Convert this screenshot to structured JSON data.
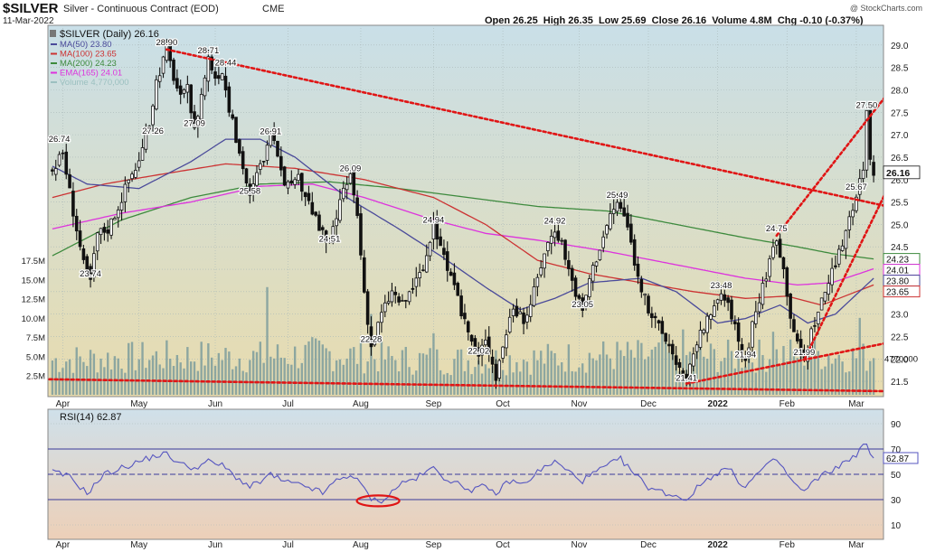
{
  "header": {
    "title": "$SILVER",
    "subtitle": "Silver - Continuous Contract (EOD)",
    "exchange": "CME",
    "date": "11-Mar-2022",
    "ohlc": "Open 26.25  High 26.35  Low 25.69  Close 26.16  Volume 4.8M  Chg -0.10 (-0.37%)",
    "credit": "@ StockCharts.com"
  },
  "colors": {
    "price_bg_top": "#c9dfe8",
    "price_bg_bottom": "#e8dcae",
    "rsi_bg_top": "#cfe0ea",
    "rsi_bg_bottom": "#edd0b8",
    "ma50": "#4a4a9a",
    "ma100": "#cc3333",
    "ma200": "#3d8a3d",
    "ema165": "#dd33dd",
    "volume": "#7c9c9c",
    "candle": "#111111",
    "trendline": "#e01515",
    "rsi_line": "#5656c0"
  },
  "chart_data": [
    {
      "type": "candlestick",
      "title": "$SILVER (Daily) 26.16",
      "legend": [
        {
          "label": "MA(50) 23.80",
          "color": "#4a4a9a"
        },
        {
          "label": "MA(100) 23.65",
          "color": "#cc3333"
        },
        {
          "label": "MA(200) 24.23",
          "color": "#3d8a3d"
        },
        {
          "label": "EMA(165) 24.01",
          "color": "#dd33dd"
        },
        {
          "label": "Volume 4,770,000",
          "color": "#9cc0c0"
        }
      ],
      "x_tick_labels": [
        "Apr",
        "May",
        "Jun",
        "Jul",
        "Aug",
        "Sep",
        "Oct",
        "Nov",
        "Dec",
        "2022",
        "Feb",
        "Mar"
      ],
      "x_tick_index": [
        3,
        25,
        47,
        68,
        89,
        110,
        130,
        152,
        172,
        192,
        212,
        232
      ],
      "y_ticks": [
        21.5,
        22.0,
        22.5,
        23.0,
        23.5,
        24.0,
        24.5,
        25.0,
        25.5,
        26.0,
        26.5,
        27.0,
        27.5,
        28.0,
        28.5,
        29.0
      ],
      "y_tick_labels": [
        "21.5",
        "22.0",
        "22.5",
        "23.0",
        "23.5",
        "24.0",
        "24.5",
        "25.0",
        "25.5",
        "26.0",
        "26.5",
        "27.0",
        "27.5",
        "28.0",
        "28.5",
        "29.0"
      ],
      "ylim": [
        21.2,
        29.4
      ],
      "x_count": 238,
      "last_price": "26.16",
      "right_value_labels": [
        {
          "text": "24.23",
          "value": 24.23,
          "color": "#3d8a3d"
        },
        {
          "text": "24.01",
          "value": 24.01,
          "color": "#dd33dd"
        },
        {
          "text": "23.80",
          "value": 23.8,
          "color": "#4a4a9a"
        },
        {
          "text": "23.65",
          "value": 23.65,
          "color": "#cc3333"
        }
      ],
      "price_path": [
        [
          0,
          26.2
        ],
        [
          3,
          26.6
        ],
        [
          6,
          25.3
        ],
        [
          9,
          24.1
        ],
        [
          11,
          23.74
        ],
        [
          13,
          24.8
        ],
        [
          16,
          24.9
        ],
        [
          19,
          25.4
        ],
        [
          22,
          26.0
        ],
        [
          25,
          26.4
        ],
        [
          28,
          27.26
        ],
        [
          30,
          28.2
        ],
        [
          33,
          28.9
        ],
        [
          35,
          28.3
        ],
        [
          37,
          27.8
        ],
        [
          39,
          28.0
        ],
        [
          41,
          27.09
        ],
        [
          43,
          27.9
        ],
        [
          45,
          28.71
        ],
        [
          47,
          28.3
        ],
        [
          49,
          28.44
        ],
        [
          51,
          27.6
        ],
        [
          53,
          26.9
        ],
        [
          55,
          26.3
        ],
        [
          57,
          25.58
        ],
        [
          59,
          26.1
        ],
        [
          61,
          26.5
        ],
        [
          63,
          26.91
        ],
        [
          65,
          26.6
        ],
        [
          67,
          26.0
        ],
        [
          69,
          25.8
        ],
        [
          71,
          26.0
        ],
        [
          74,
          25.5
        ],
        [
          77,
          24.9
        ],
        [
          80,
          24.51
        ],
        [
          83,
          25.5
        ],
        [
          86,
          26.09
        ],
        [
          88,
          25.2
        ],
        [
          90,
          23.5
        ],
        [
          92,
          22.28
        ],
        [
          95,
          23.0
        ],
        [
          98,
          23.5
        ],
        [
          101,
          23.2
        ],
        [
          104,
          23.6
        ],
        [
          107,
          24.0
        ],
        [
          110,
          24.94
        ],
        [
          112,
          24.6
        ],
        [
          114,
          24.0
        ],
        [
          117,
          23.3
        ],
        [
          120,
          22.6
        ],
        [
          123,
          22.02
        ],
        [
          125,
          22.5
        ],
        [
          128,
          21.6
        ],
        [
          130,
          22.3
        ],
        [
          133,
          23.2
        ],
        [
          136,
          22.8
        ],
        [
          139,
          23.5
        ],
        [
          142,
          24.4
        ],
        [
          145,
          24.92
        ],
        [
          147,
          24.6
        ],
        [
          149,
          24.0
        ],
        [
          151,
          23.5
        ],
        [
          153,
          23.05
        ],
        [
          155,
          23.8
        ],
        [
          158,
          24.5
        ],
        [
          161,
          25.2
        ],
        [
          163,
          25.49
        ],
        [
          165,
          25.2
        ],
        [
          167,
          24.6
        ],
        [
          169,
          23.8
        ],
        [
          172,
          23.1
        ],
        [
          175,
          22.7
        ],
        [
          178,
          22.3
        ],
        [
          181,
          21.8
        ],
        [
          183,
          21.41
        ],
        [
          185,
          22.2
        ],
        [
          188,
          22.7
        ],
        [
          191,
          23.1
        ],
        [
          193,
          23.48
        ],
        [
          196,
          23.0
        ],
        [
          198,
          22.4
        ],
        [
          200,
          21.94
        ],
        [
          202,
          22.8
        ],
        [
          205,
          23.6
        ],
        [
          207,
          24.2
        ],
        [
          209,
          24.75
        ],
        [
          211,
          24.0
        ],
        [
          213,
          23.0
        ],
        [
          215,
          22.3
        ],
        [
          217,
          21.99
        ],
        [
          219,
          22.6
        ],
        [
          222,
          23.3
        ],
        [
          224,
          23.7
        ],
        [
          226,
          24.1
        ],
        [
          228,
          24.6
        ],
        [
          230,
          25.2
        ],
        [
          232,
          25.67
        ],
        [
          234,
          26.3
        ],
        [
          235,
          27.5
        ],
        [
          236,
          26.5
        ],
        [
          237,
          26.16
        ]
      ],
      "ma50": [
        [
          0,
          26.3
        ],
        [
          10,
          25.9
        ],
        [
          25,
          25.8
        ],
        [
          40,
          26.4
        ],
        [
          50,
          26.9
        ],
        [
          60,
          26.9
        ],
        [
          70,
          26.5
        ],
        [
          85,
          25.6
        ],
        [
          100,
          24.9
        ],
        [
          112,
          24.3
        ],
        [
          125,
          23.6
        ],
        [
          135,
          23.1
        ],
        [
          145,
          23.35
        ],
        [
          155,
          23.7
        ],
        [
          170,
          23.8
        ],
        [
          180,
          23.5
        ],
        [
          192,
          22.8
        ],
        [
          200,
          22.9
        ],
        [
          210,
          23.2
        ],
        [
          218,
          22.8
        ],
        [
          226,
          23.0
        ],
        [
          237,
          23.8
        ]
      ],
      "ma100": [
        [
          0,
          25.6
        ],
        [
          15,
          25.9
        ],
        [
          30,
          26.1
        ],
        [
          50,
          26.35
        ],
        [
          70,
          26.25
        ],
        [
          90,
          26.0
        ],
        [
          110,
          25.6
        ],
        [
          125,
          25.0
        ],
        [
          140,
          24.2
        ],
        [
          155,
          23.9
        ],
        [
          170,
          23.7
        ],
        [
          185,
          23.5
        ],
        [
          200,
          23.35
        ],
        [
          212,
          23.4
        ],
        [
          222,
          23.2
        ],
        [
          237,
          23.65
        ]
      ],
      "ma200": [
        [
          0,
          24.3
        ],
        [
          20,
          25.1
        ],
        [
          40,
          25.6
        ],
        [
          60,
          25.9
        ],
        [
          80,
          25.95
        ],
        [
          100,
          25.8
        ],
        [
          120,
          25.6
        ],
        [
          140,
          25.4
        ],
        [
          160,
          25.3
        ],
        [
          180,
          25.0
        ],
        [
          200,
          24.7
        ],
        [
          215,
          24.5
        ],
        [
          225,
          24.35
        ],
        [
          237,
          24.23
        ]
      ],
      "ema165": [
        [
          0,
          24.9
        ],
        [
          20,
          25.25
        ],
        [
          40,
          25.5
        ],
        [
          60,
          25.85
        ],
        [
          75,
          25.9
        ],
        [
          90,
          25.6
        ],
        [
          110,
          25.1
        ],
        [
          125,
          24.8
        ],
        [
          140,
          24.65
        ],
        [
          160,
          24.4
        ],
        [
          180,
          24.1
        ],
        [
          200,
          23.8
        ],
        [
          215,
          23.65
        ],
        [
          225,
          23.7
        ],
        [
          237,
          24.01
        ]
      ],
      "price_labels": [
        {
          "text": "26.74",
          "i": 2,
          "v": 26.74
        },
        {
          "text": "23.74",
          "i": 11,
          "v": 23.74
        },
        {
          "text": "28.90",
          "i": 33,
          "v": 28.9
        },
        {
          "text": "27.26",
          "i": 29,
          "v": 27.26
        },
        {
          "text": "28.71",
          "i": 45,
          "v": 28.71
        },
        {
          "text": "27.09",
          "i": 41,
          "v": 27.09
        },
        {
          "text": "28.44",
          "i": 50,
          "v": 28.44
        },
        {
          "text": "26.91",
          "i": 63,
          "v": 26.91
        },
        {
          "text": "25.58",
          "i": 57,
          "v": 25.58
        },
        {
          "text": "26.09",
          "i": 86,
          "v": 26.09
        },
        {
          "text": "24.51",
          "i": 80,
          "v": 24.51
        },
        {
          "text": "22.28",
          "i": 92,
          "v": 22.28
        },
        {
          "text": "24.94",
          "i": 110,
          "v": 24.94
        },
        {
          "text": "22.02",
          "i": 123,
          "v": 22.02
        },
        {
          "text": "24.92",
          "i": 145,
          "v": 24.92
        },
        {
          "text": "23.05",
          "i": 153,
          "v": 23.05
        },
        {
          "text": "25.49",
          "i": 163,
          "v": 25.49
        },
        {
          "text": "21.41",
          "i": 183,
          "v": 21.41
        },
        {
          "text": "23.48",
          "i": 193,
          "v": 23.48
        },
        {
          "text": "21.94",
          "i": 200,
          "v": 21.94
        },
        {
          "text": "24.75",
          "i": 209,
          "v": 24.75
        },
        {
          "text": "21.99",
          "i": 217,
          "v": 21.99
        },
        {
          "text": "25.67",
          "i": 232,
          "v": 25.67
        },
        {
          "text": "27.50",
          "i": 235,
          "v": 27.5
        }
      ],
      "volume_axis_labels": [
        "17.5M",
        "15.0M",
        "12.5M",
        "10.0M",
        "7.5M",
        "5.0M",
        "2.5M"
      ],
      "volume_axis_values": [
        17.5,
        15.0,
        12.5,
        10.0,
        7.5,
        5.0,
        2.5
      ],
      "volume_max": 17.5,
      "volume_last_label": "4770000",
      "volume_profile": [
        [
          0,
          4.5
        ],
        [
          20,
          4.8
        ],
        [
          40,
          5.0
        ],
        [
          60,
          4.9
        ],
        [
          80,
          5.4
        ],
        [
          100,
          4.6
        ],
        [
          120,
          4.5
        ],
        [
          140,
          4.7
        ],
        [
          160,
          5.1
        ],
        [
          180,
          4.9
        ],
        [
          200,
          5.0
        ],
        [
          220,
          5.4
        ],
        [
          237,
          4.77
        ]
      ],
      "volume_spikes": [
        {
          "i": 62,
          "v": 14.0
        },
        {
          "i": 92,
          "v": 10.5
        },
        {
          "i": 110,
          "v": 8.0
        },
        {
          "i": 176,
          "v": 9.0
        },
        {
          "i": 182,
          "v": 8.5
        },
        {
          "i": 208,
          "v": 8.2
        },
        {
          "i": 233,
          "v": 10.0
        }
      ],
      "trendlines": [
        {
          "name": "descending resistance",
          "from": [
            33,
            28.9
          ],
          "to": [
            250,
            25.25
          ]
        },
        {
          "name": "support floor",
          "from": [
            -4,
            21.55
          ],
          "to": [
            250,
            21.27
          ]
        },
        {
          "name": "rising support",
          "from": [
            183,
            21.45
          ],
          "to": [
            250,
            22.5
          ]
        },
        {
          "name": "steep channel upper",
          "from": [
            209,
            24.75
          ],
          "to": [
            248,
            28.6
          ]
        },
        {
          "name": "steep channel lower",
          "from": [
            217,
            21.99
          ],
          "to": [
            248,
            26.9
          ]
        }
      ]
    },
    {
      "type": "line",
      "title": "RSI(14) 62.87",
      "y_ticks": [
        10,
        30,
        50,
        70,
        90
      ],
      "y_tick_labels": [
        "10",
        "30",
        "50",
        "70",
        "90"
      ],
      "ylim": [
        0,
        100
      ],
      "guide_levels": [
        30,
        50,
        70
      ],
      "last_value": "62.87",
      "x_tick_labels": [
        "Apr",
        "May",
        "Jun",
        "Jul",
        "Aug",
        "Sep",
        "Oct",
        "Nov",
        "Dec",
        "2022",
        "Feb",
        "Mar"
      ],
      "values": [
        [
          0,
          52
        ],
        [
          5,
          48
        ],
        [
          10,
          35
        ],
        [
          15,
          50
        ],
        [
          20,
          55
        ],
        [
          25,
          60
        ],
        [
          30,
          65
        ],
        [
          33,
          66
        ],
        [
          37,
          58
        ],
        [
          41,
          55
        ],
        [
          45,
          60
        ],
        [
          49,
          57
        ],
        [
          53,
          48
        ],
        [
          57,
          40
        ],
        [
          60,
          44
        ],
        [
          63,
          50
        ],
        [
          66,
          45
        ],
        [
          70,
          42
        ],
        [
          74,
          40
        ],
        [
          78,
          35
        ],
        [
          82,
          45
        ],
        [
          86,
          50
        ],
        [
          89,
          42
        ],
        [
          92,
          31
        ],
        [
          94,
          28
        ],
        [
          97,
          33
        ],
        [
          100,
          42
        ],
        [
          105,
          47
        ],
        [
          110,
          55
        ],
        [
          113,
          48
        ],
        [
          117,
          42
        ],
        [
          121,
          38
        ],
        [
          124,
          40
        ],
        [
          128,
          35
        ],
        [
          132,
          45
        ],
        [
          136,
          42
        ],
        [
          140,
          52
        ],
        [
          145,
          60
        ],
        [
          149,
          52
        ],
        [
          153,
          45
        ],
        [
          157,
          52
        ],
        [
          161,
          58
        ],
        [
          164,
          62
        ],
        [
          168,
          50
        ],
        [
          172,
          40
        ],
        [
          176,
          36
        ],
        [
          180,
          33
        ],
        [
          183,
          30
        ],
        [
          187,
          42
        ],
        [
          191,
          50
        ],
        [
          195,
          55
        ],
        [
          198,
          45
        ],
        [
          200,
          40
        ],
        [
          204,
          52
        ],
        [
          209,
          62
        ],
        [
          212,
          50
        ],
        [
          215,
          40
        ],
        [
          217,
          36
        ],
        [
          220,
          45
        ],
        [
          224,
          52
        ],
        [
          228,
          58
        ],
        [
          232,
          66
        ],
        [
          235,
          75
        ],
        [
          236,
          66
        ],
        [
          237,
          62.87
        ]
      ],
      "highlight": {
        "from_index": 91,
        "to_index": 97,
        "center": 29
      }
    }
  ]
}
